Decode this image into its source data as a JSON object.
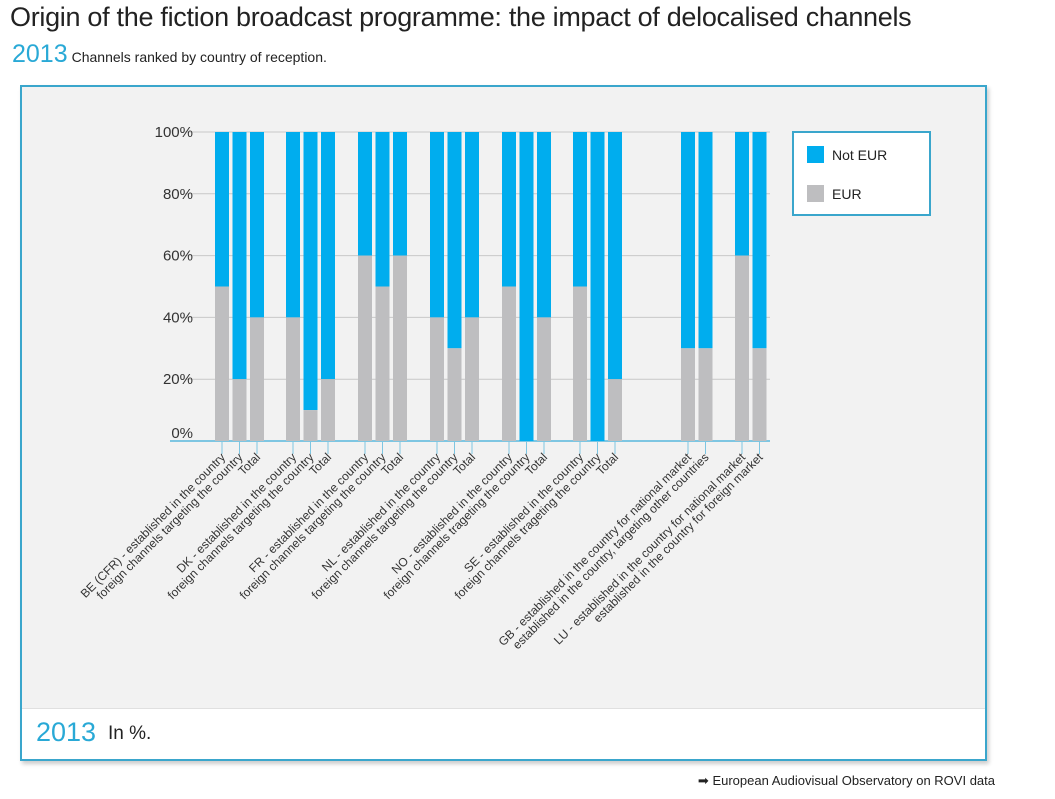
{
  "header": {
    "title": "Origin of the fiction broadcast programme: the impact of delocalised channels",
    "year": "2013",
    "subtitle": "Channels ranked by country of reception."
  },
  "footer": {
    "year": "2013",
    "note": "In %."
  },
  "source": {
    "icon": "arrow-right-icon",
    "text": "European Audiovisual Observatory on ROVI data"
  },
  "chart_data": {
    "type": "bar",
    "stacked": true,
    "ylim": [
      0,
      100
    ],
    "grid": true,
    "legend_position": "top-right",
    "yticks": [
      "0%",
      "20%",
      "40%",
      "60%",
      "80%",
      "100%"
    ],
    "colors": {
      "Not EUR": "#00adee",
      "EUR": "#bebec0"
    },
    "groups": [
      {
        "categories": [
          "BE (CFR) - established in the country",
          "foreign channels targeting the country",
          "Total"
        ],
        "eur": [
          50,
          20,
          40
        ]
      },
      {
        "categories": [
          "DK - established in the country",
          "foreign channels targeting the country",
          "Total"
        ],
        "eur": [
          40,
          10,
          20
        ]
      },
      {
        "categories": [
          "FR - established in the country",
          "foreign channels targeting the country",
          "Total"
        ],
        "eur": [
          60,
          50,
          60
        ]
      },
      {
        "categories": [
          "NL - established in the country",
          "foreign channels targeting the country",
          "Total"
        ],
        "eur": [
          40,
          30,
          40
        ]
      },
      {
        "categories": [
          "NO - established in the country",
          "foreign channels trageting the country",
          "Total"
        ],
        "eur": [
          50,
          0,
          40
        ]
      },
      {
        "categories": [
          "SE - established in the country",
          "foreign channels trageting the country",
          "Total"
        ],
        "eur": [
          50,
          0,
          20
        ]
      },
      {
        "categories": [
          "GB - established in the country for national market",
          "established in the country, targeting other countries"
        ],
        "eur": [
          30,
          30
        ]
      },
      {
        "categories": [
          "LU - established in the country for national market",
          "established in the country for foreign market"
        ],
        "eur": [
          60,
          30
        ]
      }
    ],
    "series": [
      {
        "name": "Not EUR"
      },
      {
        "name": "EUR"
      }
    ]
  }
}
